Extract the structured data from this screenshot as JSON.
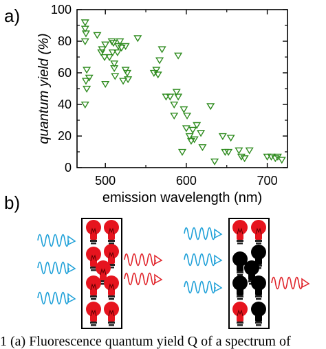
{
  "panel_a_label": "a)",
  "panel_b_label": "b)",
  "caption_fragment": "1 (a) Fluorescence quantum yield Q of a spectrum of",
  "colors": {
    "marker": "#2e8b1e",
    "wave_blue": "#1ea0d8",
    "wave_red": "#e0242a",
    "bulb_red": "#e6141e",
    "bulb_black": "#000000"
  },
  "chart_data": {
    "type": "scatter",
    "xlabel": "emission wavelength (nm)",
    "ylabel": "quantum yield (%)",
    "xlim": [
      465,
      725
    ],
    "ylim": [
      0,
      100
    ],
    "xticks": [
      500,
      600,
      700
    ],
    "yticks": [
      0,
      20,
      40,
      60,
      80,
      100
    ],
    "grid": false,
    "marker": "open-down-triangle",
    "series": [
      {
        "points": [
          [
            475,
            92
          ],
          [
            475,
            88
          ],
          [
            476,
            85
          ],
          [
            475,
            80
          ],
          [
            477,
            62
          ],
          [
            476,
            55
          ],
          [
            480,
            57
          ],
          [
            477,
            50
          ],
          [
            475,
            40
          ],
          [
            490,
            84
          ],
          [
            495,
            73
          ],
          [
            496,
            75
          ],
          [
            499,
            70
          ],
          [
            500,
            78
          ],
          [
            500,
            53
          ],
          [
            505,
            70
          ],
          [
            508,
            80
          ],
          [
            509,
            73
          ],
          [
            510,
            79
          ],
          [
            511,
            66
          ],
          [
            511,
            63
          ],
          [
            512,
            58
          ],
          [
            515,
            73
          ],
          [
            516,
            77
          ],
          [
            518,
            80
          ],
          [
            520,
            76
          ],
          [
            522,
            55
          ],
          [
            525,
            62
          ],
          [
            525,
            77
          ],
          [
            527,
            60
          ],
          [
            528,
            56
          ],
          [
            540,
            82
          ],
          [
            560,
            60
          ],
          [
            563,
            62
          ],
          [
            565,
            59
          ],
          [
            567,
            68
          ],
          [
            570,
            75
          ],
          [
            575,
            45
          ],
          [
            580,
            45
          ],
          [
            585,
            40
          ],
          [
            588,
            48
          ],
          [
            590,
            45
          ],
          [
            590,
            71
          ],
          [
            585,
            33
          ],
          [
            597,
            37
          ],
          [
            600,
            25
          ],
          [
            601,
            33
          ],
          [
            604,
            20
          ],
          [
            606,
            17
          ],
          [
            608,
            24
          ],
          [
            610,
            18
          ],
          [
            613,
            27
          ],
          [
            618,
            22
          ],
          [
            620,
            13
          ],
          [
            595,
            10
          ],
          [
            630,
            39
          ],
          [
            635,
            4
          ],
          [
            645,
            20
          ],
          [
            648,
            10
          ],
          [
            652,
            10
          ],
          [
            655,
            19
          ],
          [
            665,
            11
          ],
          [
            668,
            7
          ],
          [
            672,
            6
          ],
          [
            678,
            11
          ],
          [
            700,
            7
          ],
          [
            705,
            7
          ],
          [
            710,
            6
          ],
          [
            713,
            7
          ],
          [
            718,
            5
          ]
        ]
      }
    ]
  }
}
